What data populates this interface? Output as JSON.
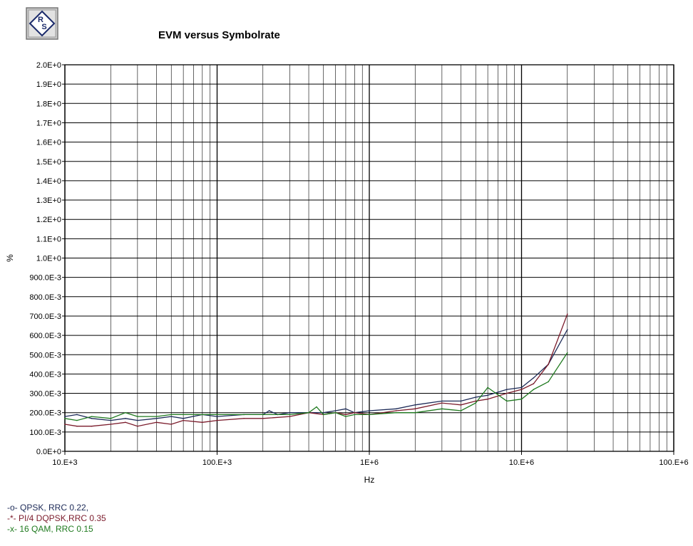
{
  "logo": {
    "text": "RS",
    "icon": "rohde-schwarz-logo"
  },
  "chart_data": {
    "type": "line",
    "title": "EVM versus Symbolrate",
    "xlabel": "Hz",
    "ylabel": "%",
    "xscale": "log",
    "xlim": [
      10000,
      100000000
    ],
    "ylim": [
      0,
      2.0
    ],
    "grid": true,
    "legend_position": "bottom-left",
    "x_ticks": [
      {
        "value": 10000,
        "label": "10.E+3"
      },
      {
        "value": 100000,
        "label": "100.E+3"
      },
      {
        "value": 1000000,
        "label": "1E+6"
      },
      {
        "value": 10000000,
        "label": "10.E+6"
      },
      {
        "value": 100000000,
        "label": "100.E+6"
      }
    ],
    "y_ticks": [
      {
        "value": 0.0,
        "label": "0.0E+0"
      },
      {
        "value": 0.1,
        "label": "100.0E-3"
      },
      {
        "value": 0.2,
        "label": "200.0E-3"
      },
      {
        "value": 0.3,
        "label": "300.0E-3"
      },
      {
        "value": 0.4,
        "label": "400.0E-3"
      },
      {
        "value": 0.5,
        "label": "500.0E-3"
      },
      {
        "value": 0.6,
        "label": "600.0E-3"
      },
      {
        "value": 0.7,
        "label": "700.0E-3"
      },
      {
        "value": 0.8,
        "label": "800.0E-3"
      },
      {
        "value": 0.9,
        "label": "900.0E-3"
      },
      {
        "value": 1.0,
        "label": "1.0E+0"
      },
      {
        "value": 1.1,
        "label": "1.1E+0"
      },
      {
        "value": 1.2,
        "label": "1.2E+0"
      },
      {
        "value": 1.3,
        "label": "1.3E+0"
      },
      {
        "value": 1.4,
        "label": "1.4E+0"
      },
      {
        "value": 1.5,
        "label": "1.5E+0"
      },
      {
        "value": 1.6,
        "label": "1.6E+0"
      },
      {
        "value": 1.7,
        "label": "1.7E+0"
      },
      {
        "value": 1.8,
        "label": "1.8E+0"
      },
      {
        "value": 1.9,
        "label": "1.9E+0"
      },
      {
        "value": 2.0,
        "label": "2.0E+0"
      }
    ],
    "series": [
      {
        "name": "QPSK, RRC 0.22,",
        "marker": "-o-",
        "color": "#1c2a57",
        "x": [
          10000,
          12000,
          15000,
          20000,
          25000,
          30000,
          40000,
          50000,
          60000,
          80000,
          100000,
          150000,
          200000,
          220000,
          250000,
          300000,
          400000,
          500000,
          600000,
          700000,
          800000,
          1000000,
          1500000,
          2000000,
          3000000,
          4000000,
          5000000,
          6000000,
          8000000,
          10000000,
          12000000,
          15000000,
          20000000
        ],
        "y": [
          0.18,
          0.19,
          0.17,
          0.16,
          0.17,
          0.16,
          0.17,
          0.18,
          0.17,
          0.19,
          0.18,
          0.19,
          0.19,
          0.21,
          0.19,
          0.2,
          0.2,
          0.2,
          0.21,
          0.22,
          0.2,
          0.21,
          0.22,
          0.24,
          0.26,
          0.26,
          0.28,
          0.29,
          0.32,
          0.33,
          0.38,
          0.45,
          0.63
        ]
      },
      {
        "name": "PI/4 DQPSK,RRC 0.35",
        "marker": "-*-",
        "color": "#7a1a2a",
        "x": [
          10000,
          12000,
          15000,
          20000,
          25000,
          30000,
          40000,
          50000,
          60000,
          80000,
          100000,
          150000,
          200000,
          300000,
          400000,
          500000,
          600000,
          700000,
          800000,
          1000000,
          1500000,
          2000000,
          3000000,
          4000000,
          5000000,
          6000000,
          8000000,
          10000000,
          12000000,
          15000000,
          20000000
        ],
        "y": [
          0.14,
          0.13,
          0.13,
          0.14,
          0.15,
          0.13,
          0.15,
          0.14,
          0.16,
          0.15,
          0.16,
          0.17,
          0.17,
          0.18,
          0.2,
          0.19,
          0.2,
          0.19,
          0.2,
          0.19,
          0.21,
          0.22,
          0.25,
          0.24,
          0.26,
          0.27,
          0.3,
          0.32,
          0.35,
          0.45,
          0.71
        ]
      },
      {
        "name": "16 QAM, RRC 0.15",
        "marker": "-x-",
        "color": "#1f7a1f",
        "x": [
          10000,
          12000,
          15000,
          20000,
          25000,
          30000,
          40000,
          50000,
          60000,
          80000,
          100000,
          150000,
          200000,
          300000,
          400000,
          450000,
          500000,
          600000,
          700000,
          800000,
          1000000,
          1500000,
          2000000,
          3000000,
          4000000,
          5000000,
          6000000,
          8000000,
          10000000,
          12000000,
          15000000,
          20000000
        ],
        "y": [
          0.17,
          0.16,
          0.18,
          0.17,
          0.2,
          0.18,
          0.18,
          0.19,
          0.19,
          0.19,
          0.19,
          0.19,
          0.19,
          0.19,
          0.2,
          0.23,
          0.19,
          0.2,
          0.18,
          0.19,
          0.19,
          0.2,
          0.2,
          0.22,
          0.21,
          0.25,
          0.33,
          0.26,
          0.27,
          0.32,
          0.36,
          0.51
        ]
      }
    ]
  }
}
